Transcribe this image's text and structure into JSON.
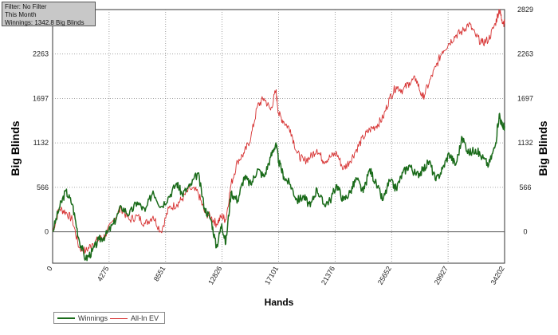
{
  "info": {
    "filter": "Filter: No Filter",
    "period": "This Month",
    "winnings": "Winnings: 1342.8 Big Blinds"
  },
  "legend": {
    "winnings_label": "Winnings",
    "allin_label": "All-In EV"
  },
  "colors": {
    "winnings": "#1a6b1a",
    "allin": "#d63030",
    "grid": "#888888",
    "zero_line": "#555555"
  },
  "chart_data": {
    "type": "line",
    "title": "",
    "xlabel": "Hands",
    "ylabel": "Big Blinds",
    "xlim": [
      0,
      34202
    ],
    "ylim": [
      -400,
      2829
    ],
    "x_ticks": [
      0,
      4275,
      8551,
      12826,
      17101,
      21376,
      25652,
      29927,
      34202
    ],
    "y_ticks": [
      0,
      566,
      1132,
      1697,
      2263,
      2829
    ],
    "grid": true,
    "legend_position": "bottom-left",
    "series": [
      {
        "name": "Winnings",
        "x": [
          0,
          500,
          1000,
          1500,
          2000,
          2500,
          3000,
          3500,
          4000,
          4600,
          5200,
          5800,
          6400,
          7000,
          7600,
          8200,
          8800,
          9400,
          9800,
          10400,
          11000,
          11500,
          12000,
          12400,
          12800,
          13100,
          13500,
          14000,
          14500,
          15000,
          15500,
          16000,
          16500,
          16900,
          17100,
          17500,
          18000,
          18500,
          19000,
          19500,
          20000,
          20500,
          21000,
          21500,
          22000,
          22500,
          23000,
          23500,
          24000,
          24500,
          25000,
          25500,
          26000,
          26500,
          27000,
          27500,
          28000,
          28500,
          29000,
          29500,
          30000,
          30500,
          31000,
          31500,
          32000,
          32500,
          33000,
          33500,
          33800,
          34000,
          34202
        ],
        "values": [
          0,
          300,
          520,
          350,
          -100,
          -350,
          -250,
          -100,
          -50,
          100,
          320,
          220,
          380,
          260,
          520,
          320,
          450,
          620,
          480,
          580,
          750,
          300,
          150,
          -200,
          100,
          -150,
          500,
          400,
          700,
          600,
          800,
          700,
          950,
          1132,
          900,
          700,
          600,
          400,
          450,
          320,
          550,
          350,
          400,
          600,
          400,
          500,
          680,
          500,
          800,
          600,
          400,
          650,
          550,
          750,
          850,
          720,
          780,
          900,
          650,
          800,
          1000,
          850,
          1200,
          1000,
          1050,
          950,
          850,
          1100,
          1500,
          1350,
          1343
        ]
      },
      {
        "name": "All-In EV",
        "x": [
          0,
          500,
          1000,
          1500,
          2000,
          2500,
          3000,
          3500,
          4000,
          4600,
          5200,
          5800,
          6400,
          7000,
          7600,
          8200,
          8800,
          9400,
          9800,
          10400,
          11000,
          11500,
          12000,
          12400,
          12800,
          13100,
          13500,
          14000,
          14500,
          15000,
          15500,
          16000,
          16500,
          16900,
          17100,
          17500,
          18000,
          18500,
          19000,
          19500,
          20000,
          20500,
          21000,
          21500,
          22000,
          22500,
          23000,
          23500,
          24000,
          24500,
          25000,
          25500,
          26000,
          26500,
          27000,
          27500,
          28000,
          28500,
          29000,
          29500,
          30000,
          30500,
          31000,
          31500,
          32000,
          32500,
          33000,
          33500,
          33800,
          34000,
          34202
        ],
        "values": [
          0,
          300,
          250,
          150,
          -200,
          -250,
          -150,
          -100,
          -50,
          150,
          300,
          150,
          200,
          100,
          200,
          0,
          300,
          350,
          420,
          550,
          500,
          250,
          180,
          100,
          200,
          150,
          600,
          900,
          1000,
          1200,
          1600,
          1700,
          1550,
          1800,
          1500,
          1400,
          1300,
          1000,
          900,
          950,
          1050,
          900,
          950,
          1000,
          800,
          900,
          1050,
          1200,
          1300,
          1350,
          1450,
          1700,
          1850,
          1800,
          1900,
          1950,
          1700,
          1900,
          2100,
          2300,
          2400,
          2500,
          2550,
          2650,
          2500,
          2400,
          2450,
          2650,
          2829,
          2700,
          2650
        ]
      }
    ]
  }
}
